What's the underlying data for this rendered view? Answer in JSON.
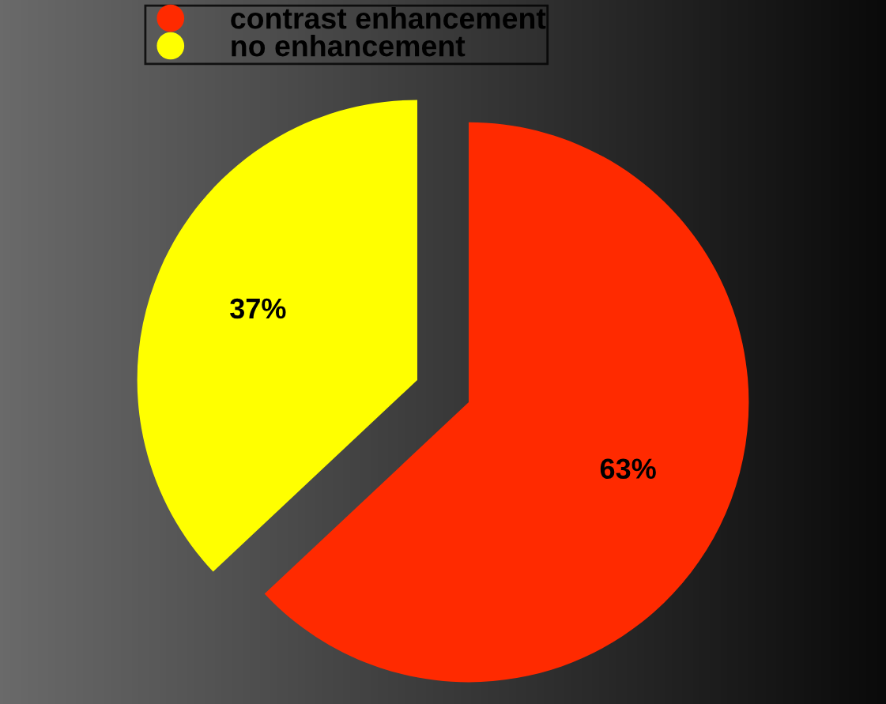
{
  "chart_data": {
    "type": "pie",
    "categories": [
      "contrast enhancement",
      "no enhancement"
    ],
    "values": [
      63,
      37
    ],
    "colors": [
      "#ff2a00",
      "#ffff00"
    ],
    "value_labels": [
      "63%",
      "37%"
    ],
    "legend": "top"
  }
}
